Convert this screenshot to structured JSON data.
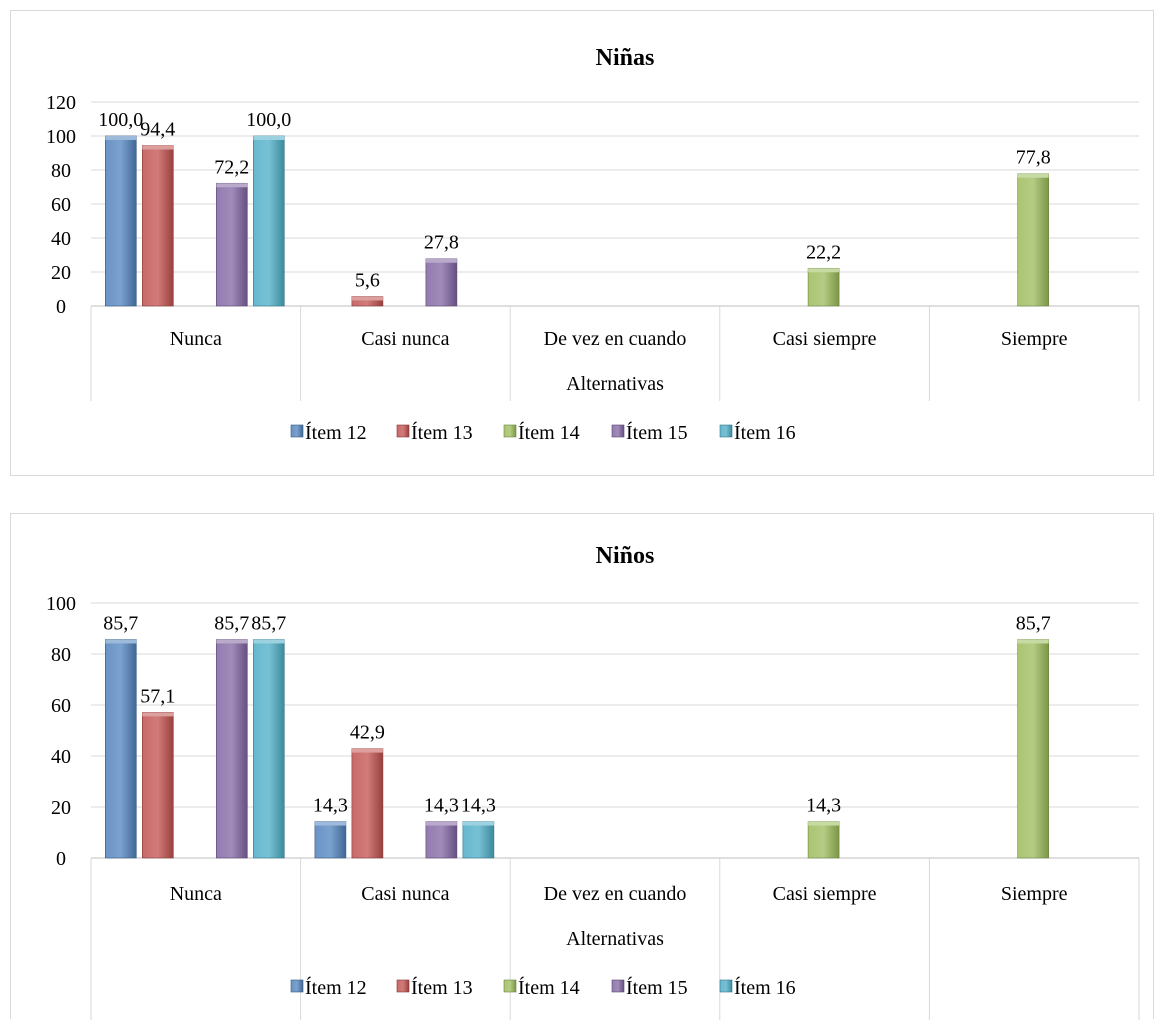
{
  "chart_data": [
    {
      "type": "bar",
      "title": "Niñas",
      "xlabel": "Alternativas",
      "ylabel": "",
      "ylim": [
        0,
        120
      ],
      "yticks": [
        "0",
        "20",
        "40",
        "60",
        "80",
        "100",
        "120"
      ],
      "categories": [
        "Nunca",
        "Casi nunca",
        "De vez en cuando",
        "Casi siempre",
        "Siempre"
      ],
      "series": [
        {
          "name": "Ítem 12",
          "color": "#4f81bd",
          "values": [
            100.0,
            0,
            0,
            0,
            0
          ],
          "labels": [
            "100,0",
            "",
            "",
            "",
            ""
          ]
        },
        {
          "name": "Ítem 13",
          "color": "#c0504d",
          "values": [
            94.4,
            5.6,
            0,
            0,
            0
          ],
          "labels": [
            "94,4",
            "5,6",
            "",
            "",
            ""
          ]
        },
        {
          "name": "Ítem 14",
          "color": "#9bbb59",
          "values": [
            0,
            0,
            0,
            22.2,
            77.8
          ],
          "labels": [
            "",
            "",
            "",
            "22,2",
            "77,8"
          ]
        },
        {
          "name": "Ítem 15",
          "color": "#8064a2",
          "values": [
            72.2,
            27.8,
            0,
            0,
            0
          ],
          "labels": [
            "72,2",
            "27,8",
            "",
            "",
            ""
          ]
        },
        {
          "name": "Ítem 16",
          "color": "#4bacc6",
          "values": [
            100.0,
            0,
            0,
            0,
            0
          ],
          "labels": [
            "100,0",
            "",
            "",
            "",
            ""
          ]
        }
      ],
      "legend": "bottom",
      "grid": true
    },
    {
      "type": "bar",
      "title": "Niños",
      "xlabel": "Alternativas",
      "ylabel": "",
      "ylim": [
        0,
        100
      ],
      "yticks": [
        "0",
        "20",
        "40",
        "60",
        "80",
        "100"
      ],
      "categories": [
        "Nunca",
        "Casi nunca",
        "De vez en cuando",
        "Casi siempre",
        "Siempre"
      ],
      "series": [
        {
          "name": "Ítem 12",
          "color": "#4f81bd",
          "values": [
            85.7,
            14.3,
            0,
            0,
            0
          ],
          "labels": [
            "85,7",
            "14,3",
            "",
            "",
            ""
          ]
        },
        {
          "name": "Ítem 13",
          "color": "#c0504d",
          "values": [
            57.1,
            42.9,
            0,
            0,
            0
          ],
          "labels": [
            "57,1",
            "42,9",
            "",
            "",
            ""
          ]
        },
        {
          "name": "Ítem 14",
          "color": "#9bbb59",
          "values": [
            0,
            0,
            0,
            14.3,
            85.7
          ],
          "labels": [
            "",
            "",
            "",
            "14,3",
            "85,7"
          ]
        },
        {
          "name": "Ítem 15",
          "color": "#8064a2",
          "values": [
            85.7,
            14.3,
            0,
            0,
            0
          ],
          "labels": [
            "85,7",
            "14,3",
            "",
            "",
            ""
          ]
        },
        {
          "name": "Ítem 16",
          "color": "#4bacc6",
          "values": [
            85.7,
            14.3,
            0,
            0,
            0
          ],
          "labels": [
            "85,7",
            "14,3",
            "",
            "",
            ""
          ]
        }
      ],
      "legend": "bottom",
      "grid": true
    }
  ]
}
